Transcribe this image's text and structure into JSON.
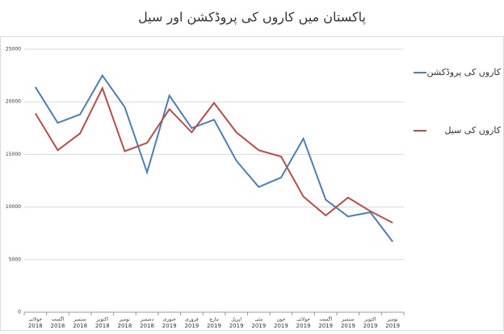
{
  "chart_data": {
    "type": "line",
    "title": "پاکستان میں کاروں کی پروڈکشن اور سیل",
    "categories": [
      [
        "جولائی",
        "2018"
      ],
      [
        "اگست",
        "2018"
      ],
      [
        "ستمبر",
        "2018"
      ],
      [
        "اکتوبر",
        "2018"
      ],
      [
        "نومبر",
        "2018"
      ],
      [
        "دسمبر",
        "2018"
      ],
      [
        "جنوری",
        "2019"
      ],
      [
        "فروری",
        "2019"
      ],
      [
        "مارچ",
        "2019"
      ],
      [
        "اپریل",
        "2019"
      ],
      [
        "مئی",
        "2019"
      ],
      [
        "جون",
        "2019"
      ],
      [
        "جولائی",
        "2019"
      ],
      [
        "اگست",
        "2019"
      ],
      [
        "ستمبر",
        "2019"
      ],
      [
        "اکتوبر",
        "2019"
      ],
      [
        "نومبر",
        "2019"
      ]
    ],
    "series": [
      {
        "name": "کاروں کی پروڈکشن",
        "color": "#4a7ebb",
        "values": [
          21400,
          18000,
          18800,
          22500,
          19500,
          13300,
          20600,
          17500,
          18300,
          14400,
          11900,
          12800,
          16500,
          10700,
          9100,
          9500,
          6700
        ]
      },
      {
        "name": "کاروں کی سیل",
        "color": "#be4b48",
        "values": [
          18900,
          15400,
          17000,
          21300,
          15300,
          16100,
          19300,
          17100,
          19900,
          17100,
          15400,
          14800,
          11000,
          9200,
          10900,
          9600,
          8500
        ]
      }
    ],
    "ylim": [
      0,
      25000
    ],
    "yticks": [
      0,
      5000,
      10000,
      15000,
      20000,
      25000
    ],
    "grid": true
  }
}
